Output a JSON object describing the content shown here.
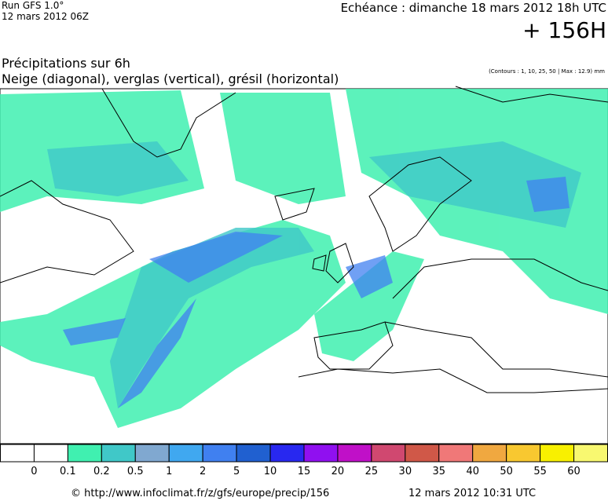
{
  "header": {
    "run": "Run GFS 1.0°",
    "run_date": "12 mars 2012 06Z",
    "forecast": "Echéance : dimanche 18 mars 2012 18h UTC",
    "lead": "+ 156H"
  },
  "title": {
    "line1": "Précipitations sur 6h",
    "line2": "Neige (diagonal), verglas (vertical), grésil (horizontal)",
    "note": "(Contours : 1, 10, 25, 50 | Max : 12.9) mm"
  },
  "colorbar": {
    "colors": [
      "#ffffff",
      "#ffffff",
      "#40f0b0",
      "#40c8c8",
      "#80a8d0",
      "#40a8f0",
      "#4080f0",
      "#2060d0",
      "#2828f0",
      "#9010f0",
      "#c010c8",
      "#d04870",
      "#d05848",
      "#f07878",
      "#f0a840",
      "#f8c830",
      "#f8f000",
      "#f8f870"
    ],
    "ticks": [
      0,
      0.1,
      0.2,
      0.5,
      1,
      2,
      5,
      10,
      15,
      20,
      25,
      30,
      35,
      40,
      50,
      55,
      60
    ]
  },
  "footer": {
    "url": "© http://www.infoclimat.fr/z/gfs/europe/precip/156",
    "date": "12 mars 2012 10:31 UTC"
  }
}
